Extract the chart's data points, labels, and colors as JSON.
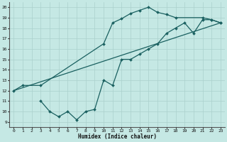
{
  "xlabel": "Humidex (Indice chaleur)",
  "xlim": [
    -0.5,
    23.5
  ],
  "ylim": [
    8.5,
    20.5
  ],
  "xticks": [
    0,
    1,
    2,
    3,
    4,
    5,
    6,
    7,
    8,
    9,
    10,
    11,
    12,
    13,
    14,
    15,
    16,
    17,
    18,
    19,
    20,
    21,
    22,
    23
  ],
  "yticks": [
    9,
    10,
    11,
    12,
    13,
    14,
    15,
    16,
    17,
    18,
    19,
    20
  ],
  "bg_color": "#c5e8e4",
  "line_color": "#1a6060",
  "grid_color": "#aad0cc",
  "line1_x": [
    0,
    1,
    3,
    10,
    11,
    12,
    13,
    14,
    15,
    16,
    17,
    18,
    21,
    22,
    23
  ],
  "line1_y": [
    12,
    12.5,
    12.5,
    16.5,
    18.5,
    18.9,
    19.4,
    19.7,
    20.0,
    19.5,
    19.3,
    19.0,
    19.0,
    18.8,
    18.5
  ],
  "line2_x": [
    0,
    23
  ],
  "line2_y": [
    12,
    18.5
  ],
  "line3_x": [
    3,
    4,
    5,
    6,
    7,
    8,
    9,
    10,
    11,
    12,
    13,
    14,
    15,
    16,
    17,
    18,
    19,
    20,
    21,
    22,
    23
  ],
  "line3_y": [
    11.0,
    10.0,
    9.5,
    10.0,
    9.2,
    10.0,
    10.2,
    13.0,
    12.5,
    15.0,
    15.0,
    15.5,
    16.0,
    16.5,
    17.5,
    18.0,
    18.5,
    17.5,
    18.8,
    18.8,
    18.5
  ]
}
